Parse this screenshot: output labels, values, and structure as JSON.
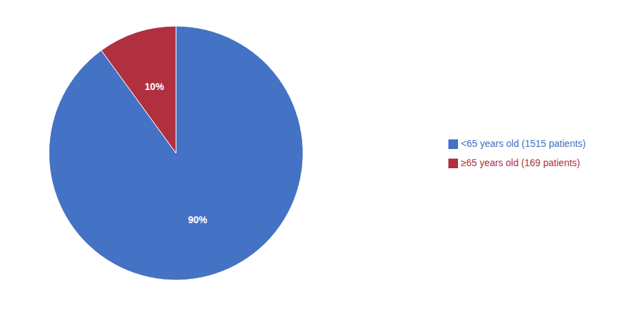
{
  "chart_data": {
    "type": "pie",
    "categories": [
      "<65 years old (1515 patients)",
      "≥65 years old (169 patients)"
    ],
    "values": [
      90,
      10
    ],
    "value_labels": [
      "90%",
      "10%"
    ],
    "colors": [
      "#4472C4",
      "#B03040"
    ],
    "data_labels": true,
    "legend": "right"
  }
}
